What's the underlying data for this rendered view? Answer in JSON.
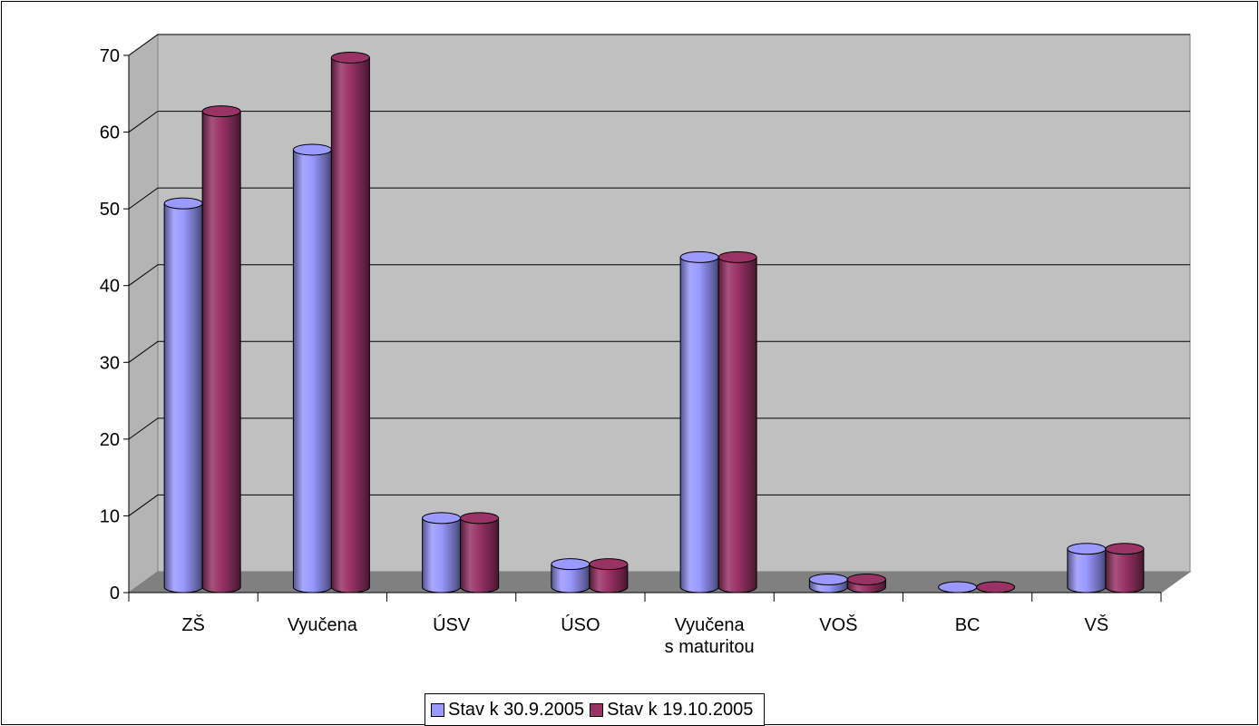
{
  "chart_data": {
    "type": "bar",
    "style": "3d-cylinder",
    "categories": [
      "ZŠ",
      "Vyučena",
      "ÚSV",
      "ÚSO",
      "Vyučena s maturitou",
      "VOŠ",
      "BC",
      "VŠ"
    ],
    "category_lines": [
      [
        "ZŠ"
      ],
      [
        "Vyučena"
      ],
      [
        "ÚSV"
      ],
      [
        "ÚSO"
      ],
      [
        "Vyučena",
        "s maturitou"
      ],
      [
        "VOŠ"
      ],
      [
        "BC"
      ],
      [
        "VŠ"
      ]
    ],
    "series": [
      {
        "name": "Stav k 30.9.2005",
        "color": "#9999ff",
        "values": [
          50,
          57,
          9,
          3,
          43,
          1,
          0,
          5
        ]
      },
      {
        "name": "Stav k 19.10.2005",
        "color": "#993366",
        "values": [
          62,
          69,
          9,
          3,
          43,
          1,
          0,
          5
        ]
      }
    ],
    "ylim": [
      0,
      70
    ],
    "yticks": [
      0,
      10,
      20,
      30,
      40,
      50,
      60,
      70
    ],
    "grid": true,
    "wall_color": "#c0c0c0",
    "floor_color": "#808080",
    "legend_position": "bottom"
  }
}
